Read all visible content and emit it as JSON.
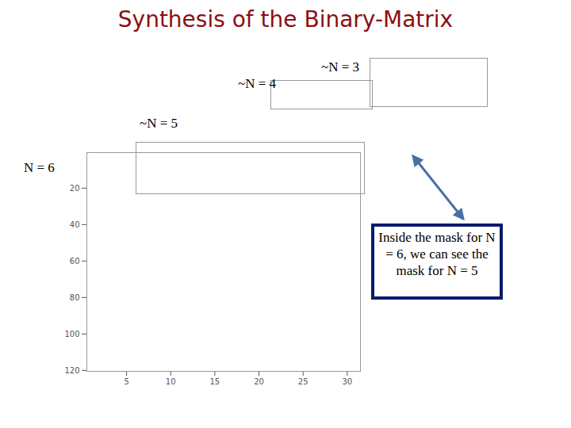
{
  "title": "Synthesis of the Binary-Matrix",
  "annotation": "Inside the mask for N = 6, we can see the mask for N = 5",
  "chart_data": [
    {
      "type": "image",
      "title": "~N = 3",
      "tick_labels": false
    },
    {
      "type": "image",
      "title": "~N = 4",
      "tick_labels": false
    },
    {
      "type": "image",
      "title": "~N = 5",
      "tick_labels": false
    },
    {
      "type": "image",
      "title": "N = 6",
      "xlim": [
        0.5,
        31.5
      ],
      "ylim": [
        0.5,
        120.5
      ],
      "xticks": [
        5,
        10,
        15,
        20,
        25,
        30
      ],
      "yticks": [
        20,
        40,
        60,
        80,
        100,
        120
      ]
    }
  ]
}
